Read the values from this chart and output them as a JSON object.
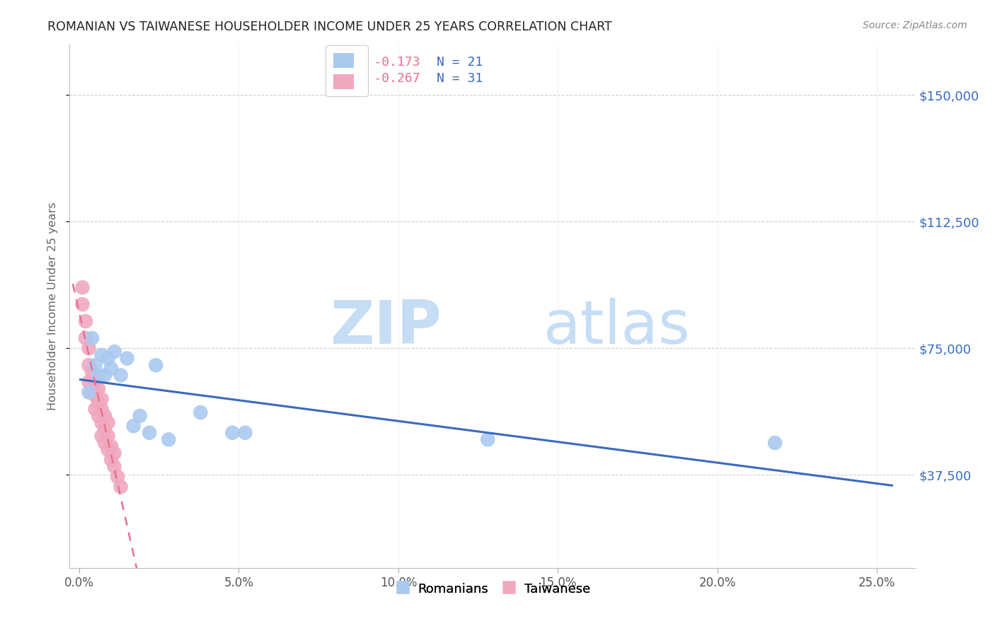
{
  "title": "ROMANIAN VS TAIWANESE HOUSEHOLDER INCOME UNDER 25 YEARS CORRELATION CHART",
  "source": "Source: ZipAtlas.com",
  "xlabel_ticks": [
    "0.0%",
    "5.0%",
    "10.0%",
    "15.0%",
    "20.0%",
    "25.0%"
  ],
  "xlabel_vals": [
    0.0,
    0.05,
    0.1,
    0.15,
    0.2,
    0.25
  ],
  "ylabel_ticks": [
    "$37,500",
    "$75,000",
    "$112,500",
    "$150,000"
  ],
  "ylabel_vals": [
    37500,
    75000,
    112500,
    150000
  ],
  "ylim": [
    10000,
    165000
  ],
  "xlim": [
    -0.003,
    0.262
  ],
  "romanian_R": -0.173,
  "romanian_N": 21,
  "taiwanese_R": -0.267,
  "taiwanese_N": 31,
  "romanian_color": "#aac9ef",
  "taiwanese_color": "#f0a8bf",
  "romanian_line_color": "#3a6abf",
  "taiwanese_line_color": "#e87090",
  "romanian_R_color": "#e87090",
  "romanian_N_color": "#3a6abf",
  "taiwanese_R_color": "#e87090",
  "taiwanese_N_color": "#3a6abf",
  "watermark_zip": "ZIP",
  "watermark_atlas": "atlas",
  "romanian_x": [
    0.003,
    0.004,
    0.005,
    0.006,
    0.007,
    0.008,
    0.009,
    0.01,
    0.011,
    0.013,
    0.015,
    0.017,
    0.019,
    0.022,
    0.024,
    0.028,
    0.038,
    0.048,
    0.052,
    0.128,
    0.218
  ],
  "romanian_y": [
    62000,
    78000,
    70000,
    67000,
    73000,
    67000,
    72000,
    69000,
    74000,
    67000,
    72000,
    52000,
    55000,
    50000,
    70000,
    48000,
    56000,
    50000,
    50000,
    48000,
    47000
  ],
  "taiwanese_x": [
    0.001,
    0.001,
    0.002,
    0.002,
    0.003,
    0.003,
    0.003,
    0.004,
    0.004,
    0.005,
    0.005,
    0.005,
    0.006,
    0.006,
    0.006,
    0.007,
    0.007,
    0.007,
    0.007,
    0.008,
    0.008,
    0.008,
    0.009,
    0.009,
    0.009,
    0.01,
    0.01,
    0.011,
    0.011,
    0.012,
    0.013
  ],
  "taiwanese_y": [
    93000,
    88000,
    83000,
    78000,
    75000,
    70000,
    65000,
    68000,
    62000,
    65000,
    61000,
    57000,
    63000,
    59000,
    55000,
    60000,
    57000,
    53000,
    49000,
    55000,
    51000,
    47000,
    53000,
    49000,
    45000,
    46000,
    42000,
    44000,
    40000,
    37000,
    34000
  ]
}
